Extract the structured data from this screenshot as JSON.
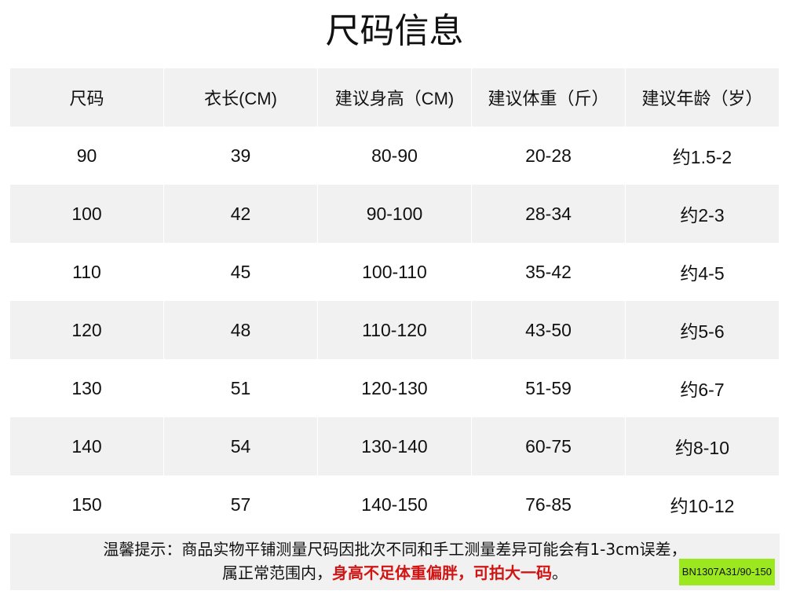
{
  "title": "尺码信息",
  "headers": [
    "尺码",
    "衣长(CM)",
    "建议身高（CM)",
    "建议体重（斤）",
    "建议年龄（岁）"
  ],
  "rows": [
    [
      "90",
      "39",
      "80-90",
      "20-28",
      "约1.5-2"
    ],
    [
      "100",
      "42",
      "90-100",
      "28-34",
      "约2-3"
    ],
    [
      "110",
      "45",
      "100-110",
      "35-42",
      "约4-5"
    ],
    [
      "120",
      "48",
      "110-120",
      "43-50",
      "约5-6"
    ],
    [
      "130",
      "51",
      "120-130",
      "51-59",
      "约6-7"
    ],
    [
      "140",
      "54",
      "130-140",
      "60-75",
      "约8-10"
    ],
    [
      "150",
      "57",
      "140-150",
      "76-85",
      "约10-12"
    ]
  ],
  "note": {
    "line1": "温馨提示：商品实物平铺测量尺码因批次不同和手工测量差异可能会有1-3cm误差，",
    "line2_prefix": "属正常范围内，",
    "line2_red": "身高不足体重偏胖，可拍大一码",
    "line2_suffix": "。",
    "badge": "BN1307A31/90-150"
  },
  "colors": {
    "row_alt": "#f1f1f1",
    "warning": "#d01515",
    "badge": "#9be81e"
  }
}
